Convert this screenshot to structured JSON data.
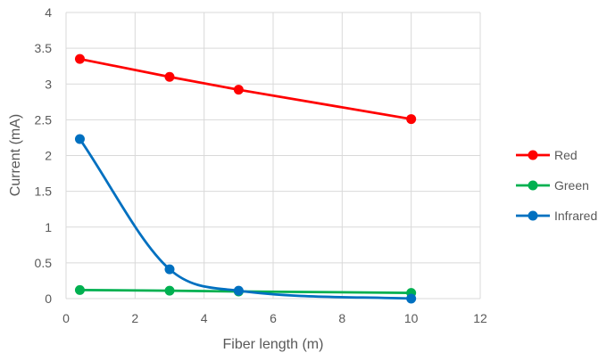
{
  "chart_data": {
    "type": "line",
    "xlabel": "Fiber length (m)",
    "ylabel": "Current (mA)",
    "xlim": [
      0,
      12
    ],
    "ylim": [
      0,
      4
    ],
    "x_ticks": [
      "0",
      "2",
      "4",
      "6",
      "8",
      "10",
      "12"
    ],
    "y_ticks": [
      "0",
      "0.5",
      "1",
      "1.5",
      "2",
      "2.5",
      "3",
      "3.5",
      "4"
    ],
    "grid": true,
    "legend_position": "right",
    "series": [
      {
        "name": "Red",
        "color": "#ff0000",
        "smooth": false,
        "x": [
          0.4,
          3,
          5,
          10
        ],
        "values": [
          3.35,
          3.1,
          2.92,
          2.51
        ]
      },
      {
        "name": "Green",
        "color": "#00b050",
        "smooth": false,
        "x": [
          0.4,
          3,
          5,
          10
        ],
        "values": [
          0.12,
          0.11,
          0.1,
          0.08
        ]
      },
      {
        "name": "Infrared",
        "color": "#0070c0",
        "smooth": true,
        "x": [
          0.4,
          3,
          5,
          10
        ],
        "values": [
          2.23,
          0.41,
          0.11,
          0.0
        ]
      }
    ]
  }
}
